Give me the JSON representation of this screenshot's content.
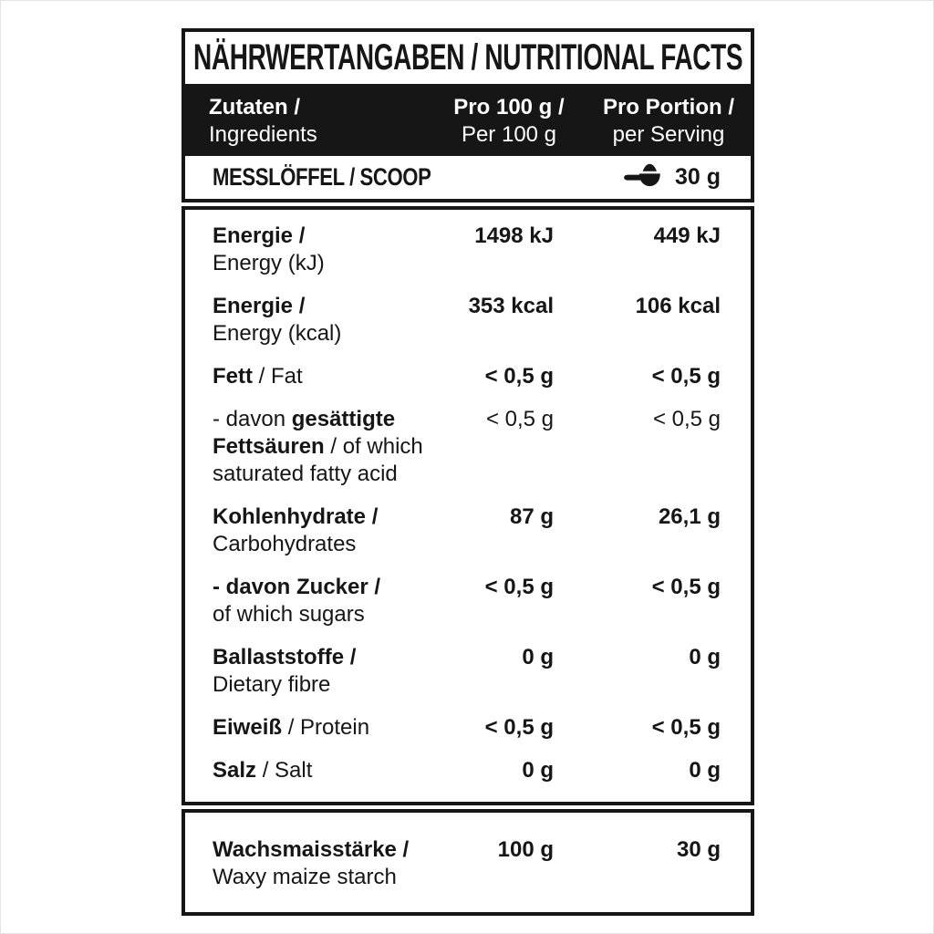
{
  "title": "NÄHRWERTANGABEN / NUTRITIONAL FACTS",
  "header": {
    "col1": {
      "line1": "Zutaten /",
      "line2": "Ingredients"
    },
    "col2": {
      "line1": "Pro 100 g /",
      "line2": "Per 100 g"
    },
    "col3": {
      "line1": "Pro Portion /",
      "line2": "per Serving"
    }
  },
  "scoop": {
    "label": "MESSLÖFFEL / SCOOP",
    "icon": "scoop-icon",
    "value": "30 g"
  },
  "rows": [
    {
      "key": "energy-kj",
      "label_lines": [
        [
          {
            "text": "Energie /",
            "bold": true
          }
        ],
        [
          {
            "text": "Energy (kJ)",
            "bold": false
          }
        ]
      ],
      "per_100g": "1498 kJ",
      "per_serving": "449 kJ",
      "values_bold": true
    },
    {
      "key": "energy-kcal",
      "label_lines": [
        [
          {
            "text": "Energie /",
            "bold": true
          }
        ],
        [
          {
            "text": "Energy (kcal)",
            "bold": false
          }
        ]
      ],
      "per_100g": "353 kcal",
      "per_serving": "106 kcal",
      "values_bold": true
    },
    {
      "key": "fat",
      "label_lines": [
        [
          {
            "text": "Fett",
            "bold": true
          },
          {
            "text": " / Fat",
            "bold": false
          }
        ]
      ],
      "per_100g": "< 0,5 g",
      "per_serving": "< 0,5 g",
      "values_bold": true
    },
    {
      "key": "saturated-fat",
      "label_lines": [
        [
          {
            "text": "- davon ",
            "bold": false
          },
          {
            "text": "gesättigte",
            "bold": true
          }
        ],
        [
          {
            "text": "Fettsäuren",
            "bold": true
          },
          {
            "text": " / of which",
            "bold": false
          }
        ],
        [
          {
            "text": "saturated fatty acid",
            "bold": false
          }
        ]
      ],
      "per_100g": "< 0,5 g",
      "per_serving": "< 0,5 g",
      "values_bold": false
    },
    {
      "key": "carbohydrates",
      "label_lines": [
        [
          {
            "text": "Kohlenhydrate /",
            "bold": true
          }
        ],
        [
          {
            "text": "Carbohydrates",
            "bold": false
          }
        ]
      ],
      "per_100g": "87 g",
      "per_serving": "26,1 g",
      "values_bold": true
    },
    {
      "key": "sugars",
      "label_lines": [
        [
          {
            "text": "- davon Zucker /",
            "bold": true
          }
        ],
        [
          {
            "text": "of which sugars",
            "bold": false
          }
        ]
      ],
      "per_100g": "< 0,5 g",
      "per_serving": "< 0,5 g",
      "values_bold": true
    },
    {
      "key": "dietary-fibre",
      "label_lines": [
        [
          {
            "text": "Ballaststoffe /",
            "bold": true
          }
        ],
        [
          {
            "text": "Dietary fibre",
            "bold": false
          }
        ]
      ],
      "per_100g": "0 g",
      "per_serving": "0 g",
      "values_bold": true
    },
    {
      "key": "protein",
      "label_lines": [
        [
          {
            "text": "Eiweiß",
            "bold": true
          },
          {
            "text": " / Protein",
            "bold": false
          }
        ]
      ],
      "per_100g": "< 0,5 g",
      "per_serving": "< 0,5 g",
      "values_bold": true
    },
    {
      "key": "salt",
      "label_lines": [
        [
          {
            "text": "Salz",
            "bold": true
          },
          {
            "text": " / Salt",
            "bold": false
          }
        ]
      ],
      "per_100g": "0 g",
      "per_serving": "0 g",
      "values_bold": true
    }
  ],
  "footer_rows": [
    {
      "key": "waxy-maize-starch",
      "label_lines": [
        [
          {
            "text": "Wachsmaisstärke /",
            "bold": true
          }
        ],
        [
          {
            "text": "Waxy maize starch",
            "bold": false
          }
        ]
      ],
      "per_100g": "100 g",
      "per_serving": "30 g",
      "values_bold": true
    }
  ],
  "colors": {
    "ink": "#161616",
    "paper": "#ffffff"
  }
}
